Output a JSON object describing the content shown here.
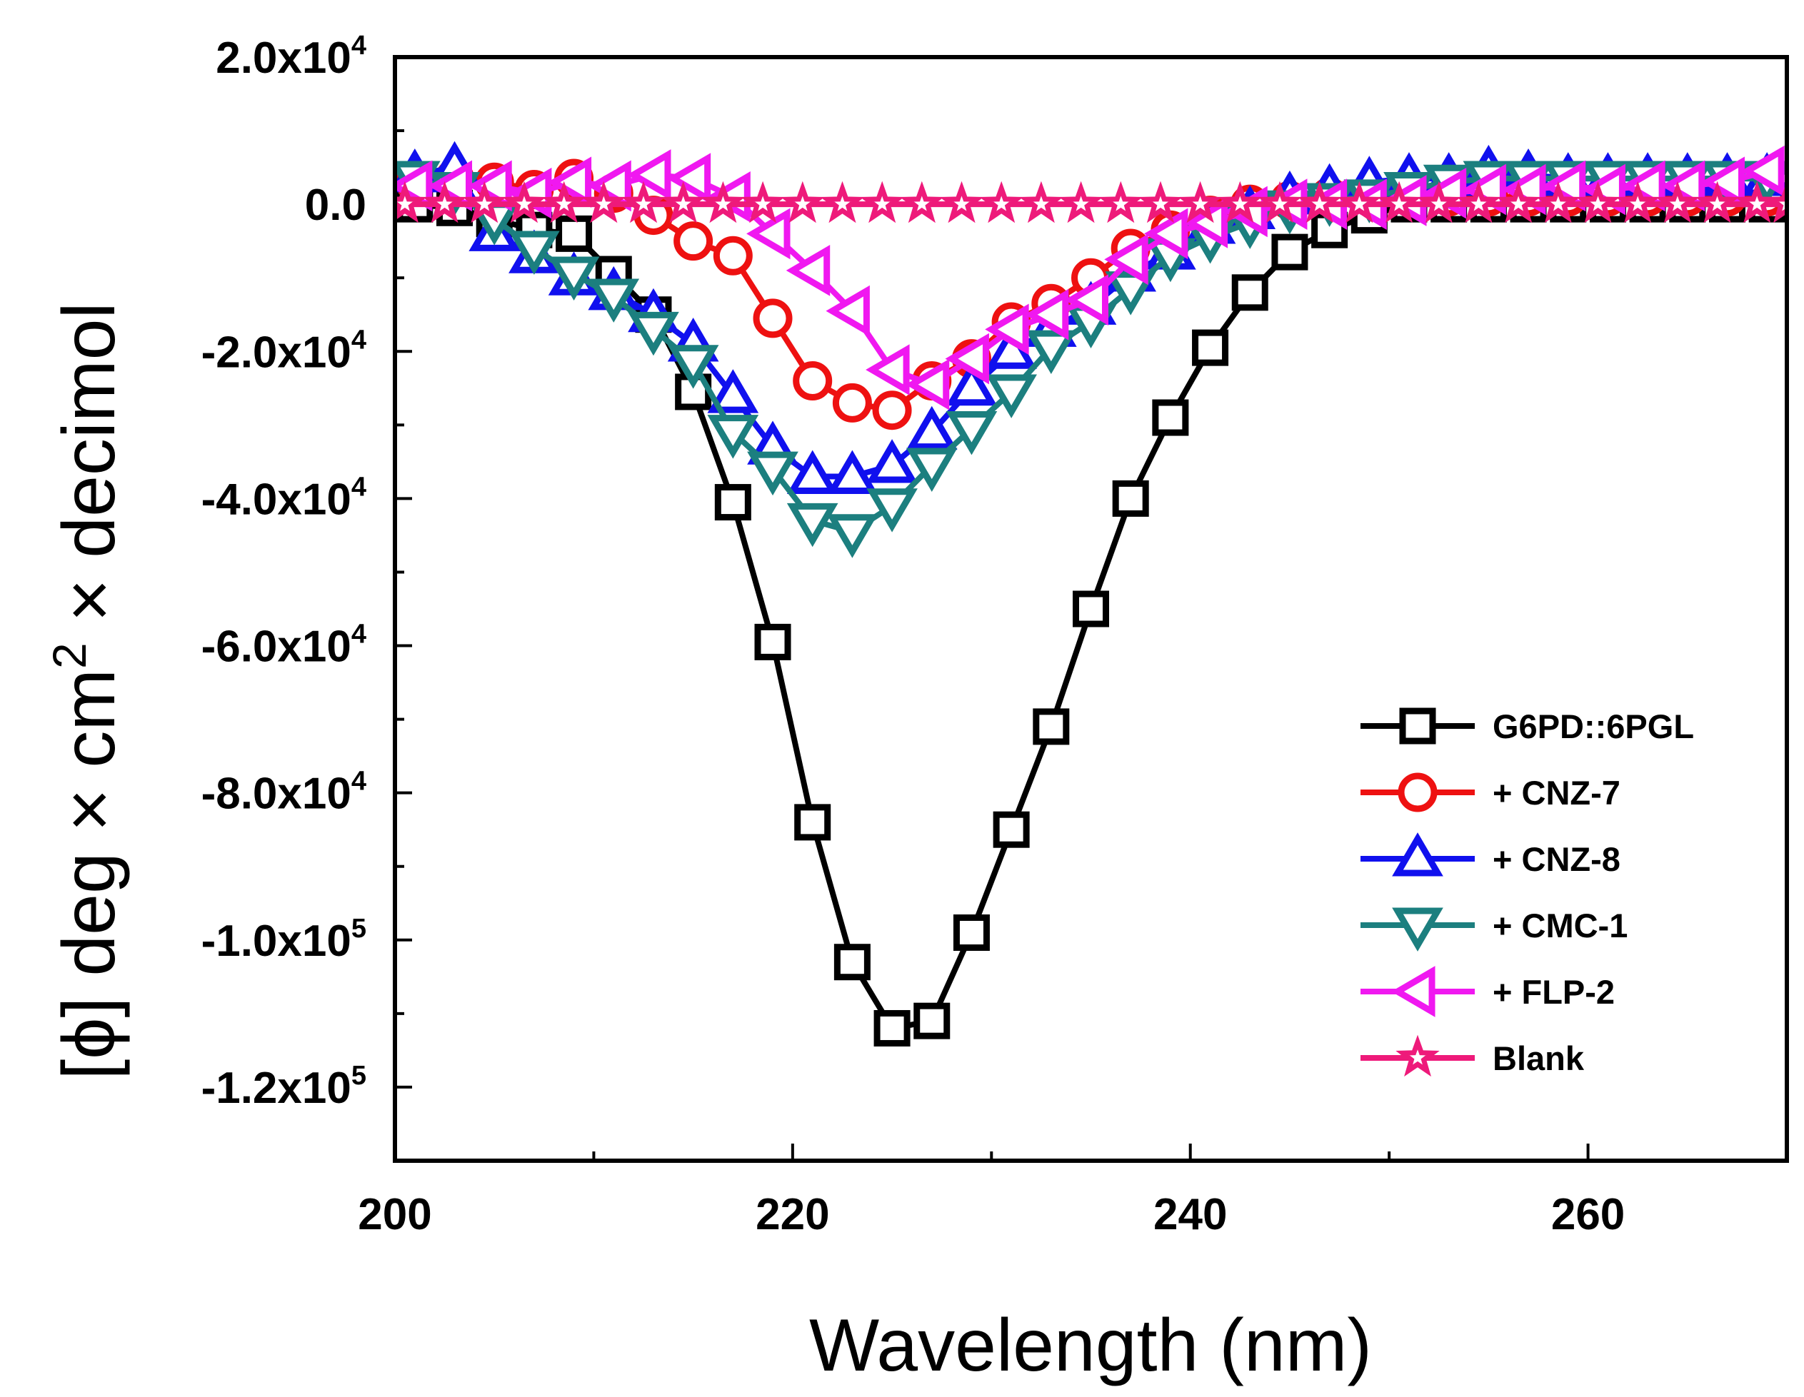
{
  "chart_data": {
    "type": "line",
    "title": "",
    "xlabel": "Wavelength (nm)",
    "ylabel_parts": [
      "[ϕ] deg × cm",
      "2",
      " × decimol"
    ],
    "xlim": [
      200,
      270
    ],
    "ylim": [
      -130000,
      20000
    ],
    "x_ticks": [
      {
        "value": 200,
        "label": "200"
      },
      {
        "value": 220,
        "label": "220"
      },
      {
        "value": 240,
        "label": "240"
      },
      {
        "value": 260,
        "label": "260"
      }
    ],
    "y_ticks": [
      {
        "value": 20000,
        "base": "2.0x10",
        "exp": "4"
      },
      {
        "value": 0,
        "base": "0.0",
        "exp": ""
      },
      {
        "value": -20000,
        "base": "-2.0x10",
        "exp": "4"
      },
      {
        "value": -40000,
        "base": "-4.0x10",
        "exp": "4"
      },
      {
        "value": -60000,
        "base": "-6.0x10",
        "exp": "4"
      },
      {
        "value": -80000,
        "base": "-8.0x10",
        "exp": "4"
      },
      {
        "value": -100000,
        "base": "-1.0x10",
        "exp": "5"
      },
      {
        "value": -120000,
        "base": "-1.2x10",
        "exp": "5"
      }
    ],
    "legend_position": "bottom-right",
    "series": [
      {
        "name": "G6PD::6PGL",
        "color": "#000000",
        "marker": "square",
        "x": [
          201,
          203,
          205,
          207,
          209,
          211,
          213,
          215,
          217,
          219,
          221,
          223,
          225,
          227,
          229,
          231,
          233,
          235,
          237,
          239,
          241,
          243,
          245,
          247,
          249,
          251,
          253,
          255,
          257,
          259,
          261,
          263,
          265,
          267,
          269
        ],
        "y": [
          0,
          -500,
          -2000,
          -3500,
          -4000,
          -9500,
          -15000,
          -25500,
          -40500,
          -59500,
          -84000,
          -103000,
          -112000,
          -111000,
          -99000,
          -85000,
          -71000,
          -55000,
          -40000,
          -29000,
          -19500,
          -12000,
          -6500,
          -3500,
          -1500,
          0,
          0,
          0,
          0,
          0,
          0,
          0,
          0,
          0,
          0
        ]
      },
      {
        "name": "+ CNZ-7",
        "color": "#ee1111",
        "marker": "circle",
        "x": [
          201,
          203,
          205,
          207,
          209,
          211,
          213,
          215,
          217,
          219,
          221,
          223,
          225,
          227,
          229,
          231,
          233,
          235,
          237,
          239,
          241,
          243,
          245,
          247,
          249,
          251,
          253,
          255,
          257,
          259,
          261,
          263,
          265,
          267,
          269
        ],
        "y": [
          3000,
          3500,
          3000,
          2000,
          3500,
          1500,
          -1500,
          -5000,
          -7000,
          -15500,
          -24000,
          -27000,
          -28000,
          -24000,
          -21000,
          -16000,
          -13500,
          -10000,
          -6000,
          -3500,
          -1500,
          0,
          500,
          1000,
          1000,
          1000,
          1000,
          1000,
          1000,
          1000,
          1000,
          1000,
          1000,
          1000,
          1000
        ]
      },
      {
        "name": "+ CNZ-8",
        "color": "#1010ee",
        "marker": "triangle-up",
        "x": [
          201,
          203,
          205,
          207,
          209,
          211,
          213,
          215,
          217,
          219,
          221,
          223,
          225,
          227,
          229,
          231,
          233,
          235,
          237,
          239,
          241,
          243,
          245,
          247,
          249,
          251,
          253,
          255,
          257,
          259,
          261,
          263,
          265,
          267,
          269
        ],
        "y": [
          4000,
          5000,
          -4000,
          -7000,
          -10000,
          -12000,
          -15000,
          -19000,
          -26000,
          -33000,
          -37000,
          -37000,
          -35500,
          -31000,
          -25000,
          -20000,
          -17000,
          -14000,
          -9500,
          -6500,
          -3000,
          -1000,
          1000,
          2000,
          3000,
          3500,
          3500,
          4500,
          4000,
          3500,
          3500,
          3500,
          3500,
          3500,
          3500
        ]
      },
      {
        "name": "+ CMC-1",
        "color": "#1c7f7f",
        "marker": "triangle-down",
        "x": [
          201,
          203,
          205,
          207,
          209,
          211,
          213,
          215,
          217,
          219,
          221,
          223,
          225,
          227,
          229,
          231,
          233,
          235,
          237,
          239,
          241,
          243,
          245,
          247,
          249,
          251,
          253,
          255,
          257,
          259,
          261,
          263,
          265,
          267,
          269
        ],
        "y": [
          3500,
          2000,
          -2000,
          -6000,
          -9500,
          -12500,
          -17000,
          -21500,
          -31000,
          -36000,
          -43000,
          -44500,
          -41000,
          -35500,
          -30500,
          -25500,
          -19500,
          -16000,
          -11500,
          -7000,
          -4500,
          -2500,
          -500,
          500,
          1000,
          2000,
          3000,
          3500,
          3500,
          3500,
          3500,
          3500,
          3500,
          3500,
          3500
        ]
      },
      {
        "name": "+ FLP-2",
        "color": "#f018f0",
        "marker": "triangle-left",
        "x": [
          201,
          203,
          205,
          207,
          209,
          211,
          213,
          215,
          217,
          219,
          221,
          223,
          225,
          227,
          229,
          231,
          233,
          235,
          237,
          239,
          241,
          243,
          245,
          247,
          249,
          251,
          253,
          255,
          257,
          259,
          261,
          263,
          265,
          267,
          269
        ],
        "y": [
          2500,
          2500,
          2500,
          1500,
          3000,
          2500,
          4000,
          3500,
          1000,
          -4000,
          -9000,
          -14500,
          -22500,
          -24500,
          -21000,
          -17000,
          -15000,
          -13000,
          -7500,
          -4000,
          -2500,
          -1000,
          0,
          0,
          0,
          500,
          1500,
          2000,
          2000,
          2500,
          2000,
          2500,
          2500,
          3000,
          4500
        ]
      },
      {
        "name": "Blank",
        "color": "#ee1a7a",
        "marker": "star",
        "x": [
          200.5,
          202.5,
          204.5,
          206.5,
          208.5,
          210.5,
          212.5,
          214.5,
          216.5,
          218.5,
          220.5,
          222.5,
          224.5,
          226.5,
          228.5,
          230.5,
          232.5,
          234.5,
          236.5,
          238.5,
          240.5,
          242.5,
          244.5,
          246.5,
          248.5,
          250.5,
          252.5,
          254.5,
          256.5,
          258.5,
          260.5,
          262.5,
          264.5,
          266.5,
          268.5,
          270
        ],
        "y": [
          0,
          0,
          0,
          0,
          0,
          0,
          0,
          0,
          0,
          0,
          0,
          0,
          0,
          0,
          0,
          0,
          0,
          0,
          0,
          0,
          0,
          0,
          0,
          0,
          0,
          0,
          0,
          0,
          0,
          0,
          0,
          0,
          0,
          0,
          0,
          0
        ]
      }
    ]
  }
}
